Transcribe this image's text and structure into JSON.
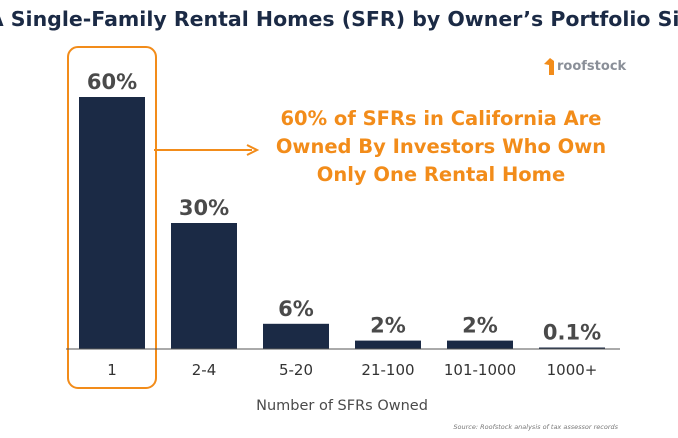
{
  "chart_data": {
    "type": "bar",
    "title": "CA Single-Family Rental Homes (SFR) by Owner’s Portfolio Size",
    "xlabel": "Number of SFRs Owned",
    "ylabel": "",
    "categories": [
      "1",
      "2-4",
      "5-20",
      "21-100",
      "101-1000",
      "1000+"
    ],
    "values": [
      60,
      30,
      6,
      2,
      2,
      0.1
    ],
    "value_labels": [
      "60%",
      "30%",
      "6%",
      "2%",
      "2%",
      "0.1%"
    ],
    "ylim": [
      0,
      60
    ],
    "grid": false,
    "legend": "none",
    "highlight_category": "1",
    "callout_lines": [
      "60% of SFRs in California Are",
      "Owned By Investors Who Own",
      "Only One Rental Home"
    ],
    "source": "Source: Roofstock analysis of tax assessor records",
    "logo_text": "roofstock",
    "colors": {
      "bar": "#1b2a45",
      "accent": "#f28c1a",
      "title": "#1b2a45"
    }
  }
}
